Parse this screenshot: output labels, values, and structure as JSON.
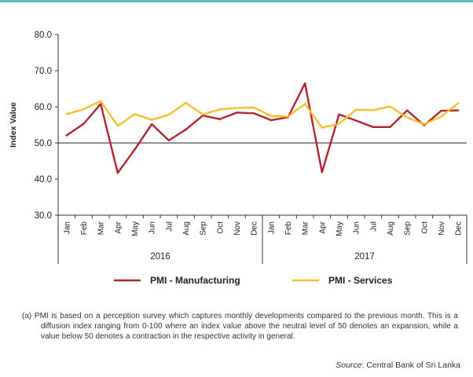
{
  "chart_data": {
    "type": "line",
    "title": "",
    "ylabel": "Index Value",
    "xlabel": "",
    "ylim": [
      30,
      80
    ],
    "yticks": [
      "30.0",
      "40.0",
      "50.0",
      "60.0",
      "70.0",
      "80.0"
    ],
    "reference_line": 50,
    "months": [
      "Jan",
      "Feb",
      "Mar",
      "Apr",
      "May",
      "Jun",
      "Jul",
      "Aug",
      "Sep",
      "Oct",
      "Nov",
      "Dec",
      "Jan",
      "Feb",
      "Mar",
      "Apr",
      "May",
      "Jun",
      "Jul",
      "Aug",
      "Sep",
      "Oct",
      "Nov",
      "Dec"
    ],
    "years": [
      "2016",
      "2017"
    ],
    "series": [
      {
        "name": "PMI - Manufacturing",
        "color": "#b5242f",
        "values": [
          52.1,
          55.3,
          60.8,
          41.7,
          48.2,
          55.2,
          50.7,
          53.7,
          57.6,
          56.6,
          58.4,
          58.2,
          56.3,
          57.1,
          66.5,
          41.9,
          57.9,
          56.2,
          54.4,
          54.4,
          59.0,
          54.9,
          58.9,
          59.0
        ]
      },
      {
        "name": "PMI - Services",
        "color": "#f8bf2c",
        "values": [
          58.0,
          59.3,
          61.6,
          54.7,
          58.0,
          56.4,
          57.8,
          61.1,
          57.9,
          59.3,
          59.7,
          59.8,
          57.5,
          57.3,
          60.8,
          54.2,
          55.3,
          59.2,
          59.1,
          60.1,
          57.0,
          55.2,
          57.3,
          61.0
        ]
      }
    ],
    "legend_position": "bottom"
  },
  "footnote": "(a)  PMI is based on a perception survey which captures monthly developments compared to the previous month. This is a diffusion index ranging from 0-100 where an index value above the neutral level of 50 denotes an expansion, while a value below 50 denotes a contraction in the respective activity in general.",
  "source": {
    "label": "Source",
    "text": ": Central Bank of Sri Lanka"
  }
}
